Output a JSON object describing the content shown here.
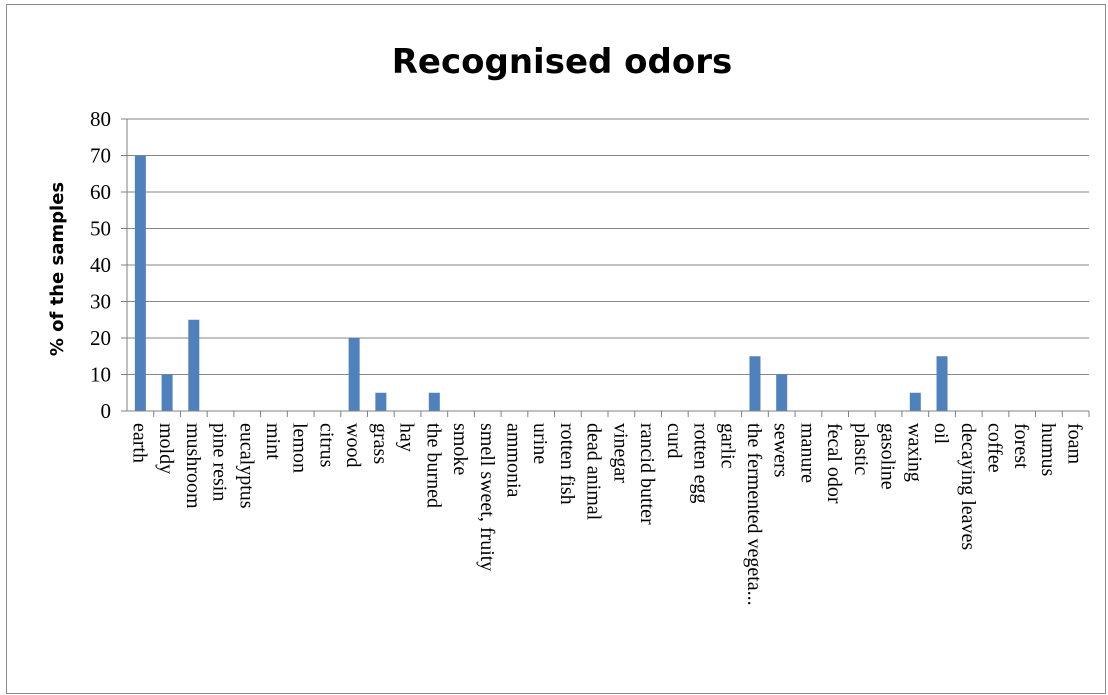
{
  "chart_data": {
    "type": "bar",
    "title": "Recognised odors",
    "xlabel": "",
    "ylabel": "% of the samples",
    "ylim": [
      0,
      80
    ],
    "yticks": [
      0,
      10,
      20,
      30,
      40,
      50,
      60,
      70,
      80
    ],
    "grid": true,
    "legend": "none",
    "bar_color": "#4f81bd",
    "categories": [
      "earth",
      "moldy",
      "mushroom",
      "pine resin",
      "eucalyptus",
      "mint",
      "lemon",
      "citrus",
      "wood",
      "grass",
      "hay",
      "the burned",
      "smoke",
      "smell sweet, fruity",
      "ammonia",
      "urine",
      "rotten fish",
      "dead animal",
      "vinegar",
      "rancid butter",
      "curd",
      "rotten egg",
      "garlic",
      "the fermented vegeta...",
      "sewers",
      "manure",
      "fecal odor",
      "plastic",
      "gasoline",
      "waxing",
      "oil",
      "decaying leaves",
      "coffee",
      "forest",
      "humus",
      "foam"
    ],
    "values": [
      70,
      10,
      25,
      0,
      0,
      0,
      0,
      0,
      20,
      5,
      0,
      5,
      0,
      0,
      0,
      0,
      0,
      0,
      0,
      0,
      0,
      0,
      0,
      15,
      10,
      0,
      0,
      0,
      0,
      5,
      15,
      0,
      0,
      0,
      0,
      0
    ]
  }
}
